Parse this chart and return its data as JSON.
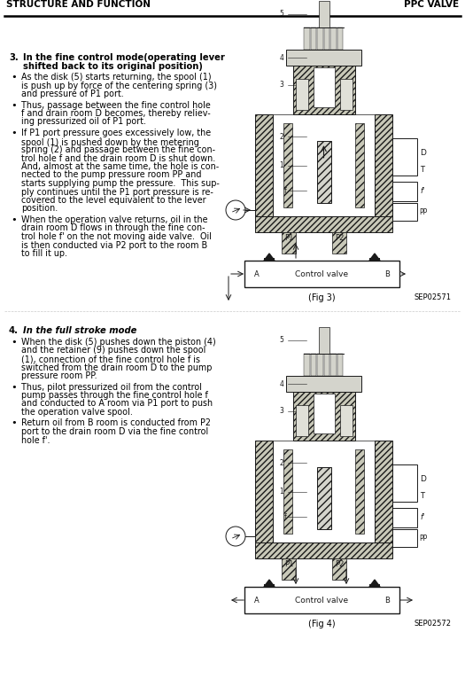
{
  "header_left": "STRUCTURE AND FUNCTION",
  "header_right": "PPC VALVE",
  "bg_color": "#ffffff",
  "section3_number": "3.",
  "section3_title_line1": "In the fine control mode(operating lever",
  "section3_title_line2": "shifted back to its original position)",
  "section3_bullets": [
    "As the disk (5) starts returning, the spool (1)\nis push up by force of the centering spring (3)\nand pressure of P1 port.",
    "Thus, passage between the fine control hole\nf and drain room D becomes, thereby reliev-\ning pressurized oil of P1 port.",
    "If P1 port pressure goes excessively low, the\nspool (1) is pushed́ down by the metering\nspring (2) and passage between the fine con-\ntrol hole f and the drain room D is shut down.\nAnd, almost at the same time, the hole is con-\nnected to the pump pressure room PP and\nstarts supplying pump the pressure.  This sup-\nply continues until the P1 port pressure is re-\ncovered to the level equivalent to the lever\nposition.",
    "When the operation valve returns, oil in the\ndrain room D flows in through the fine con-\ntrol hole f' on the not moving aide valve.  Oil\nis then conducted via P2 port to the room B\nto fill it up."
  ],
  "section4_number": "4.",
  "section4_title": "In the full stroke mode",
  "section4_bullets": [
    "When the disk (5) pushes down the piston (4)\nand the retainer (9) pushes down the spool\n(1), connection of the fine control hole f is\nswitched from the drain room D to the pump\npressure room PP.",
    "Thus, pilot pressurized oil from the control\npump passes through the fine control hole f\nand conducted to A room via P1 port to push\nthe operation valve spool.",
    "Return oil from B room is conducted from P2\nport to the drain room D via the fine control\nhole f'."
  ],
  "fig3_caption": "(Fig 3)",
  "fig3_code": "SEP02571",
  "fig4_caption": "(Fig 4)",
  "fig4_code": "SEP02572"
}
